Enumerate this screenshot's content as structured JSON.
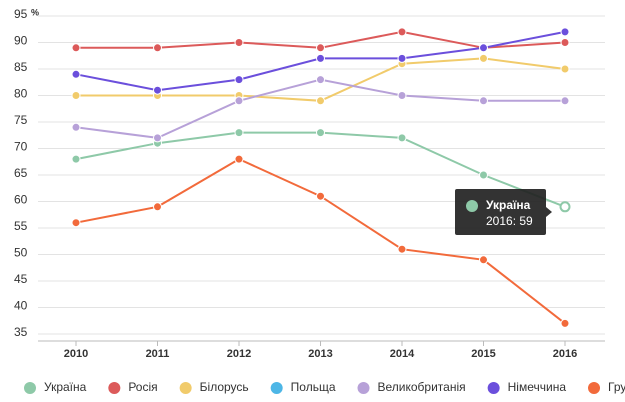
{
  "chart_data": {
    "type": "line",
    "categories": [
      "2010",
      "2011",
      "2012",
      "2013",
      "2014",
      "2015",
      "2016"
    ],
    "ylim": [
      35,
      95
    ],
    "yticks": [
      35,
      40,
      45,
      50,
      55,
      60,
      65,
      70,
      75,
      80,
      85,
      90,
      95
    ],
    "y_unit": "%",
    "grid": true,
    "legend": "bottom",
    "series": [
      {
        "name": "Україна",
        "color": "#8ec9a8",
        "values": [
          68,
          71,
          73,
          73,
          72,
          65,
          59
        ]
      },
      {
        "name": "Росія",
        "color": "#dc5a5a",
        "values": [
          89,
          89,
          90,
          89,
          92,
          89,
          90
        ]
      },
      {
        "name": "Білорусь",
        "color": "#f1cb6b",
        "values": [
          80,
          80,
          80,
          79,
          86,
          87,
          85
        ]
      },
      {
        "name": "Польща",
        "color": "#4db6e6",
        "values": [
          null,
          null,
          null,
          null,
          null,
          null,
          null
        ]
      },
      {
        "name": "Великобританія",
        "color": "#b7a1d8",
        "values": [
          74,
          72,
          79,
          83,
          80,
          79,
          79
        ]
      },
      {
        "name": "Німеччина",
        "color": "#6b4fdc",
        "values": [
          84,
          81,
          83,
          87,
          87,
          89,
          92
        ]
      },
      {
        "name": "Грузія",
        "color": "#f26a3b",
        "values": [
          56,
          59,
          68,
          61,
          51,
          49,
          37
        ]
      }
    ],
    "tooltip": {
      "title": "Україна",
      "text": "2016: 59"
    }
  }
}
